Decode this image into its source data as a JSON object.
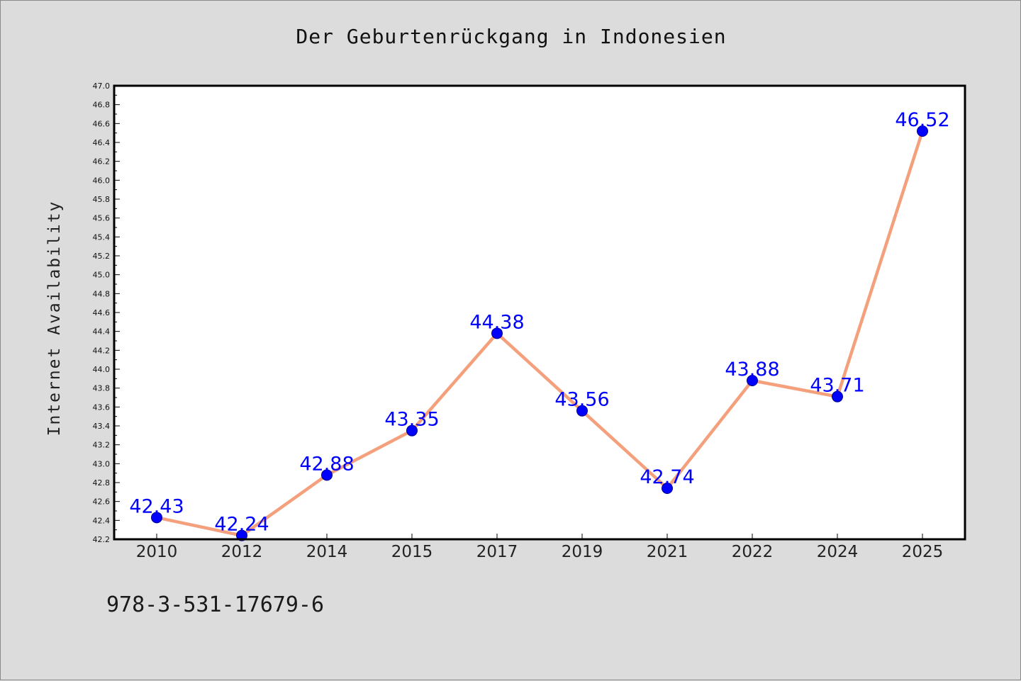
{
  "colors": {
    "background": "#dcdcdc",
    "plot_background": "#ffffff",
    "line": "#f4a07c",
    "marker": "#0000ff",
    "data_label": "#0000ff"
  },
  "isbn": "978-3-531-17679-6",
  "chart_data": {
    "type": "line",
    "title": "Der Geburtenrückgang in Indonesien",
    "xlabel": "",
    "ylabel": "Internet Availability",
    "categories": [
      "2010",
      "2012",
      "2014",
      "2015",
      "2017",
      "2019",
      "2021",
      "2022",
      "2024",
      "2025"
    ],
    "series": [
      {
        "values": [
          42.43,
          42.24,
          42.88,
          43.35,
          44.38,
          43.56,
          42.74,
          43.88,
          43.71,
          46.52
        ]
      }
    ],
    "data_labels": [
      "42.43",
      "42.24",
      "42.88",
      "43.35",
      "44.38",
      "43.56",
      "42.74",
      "43.88",
      "43.71",
      "46.52"
    ],
    "ylim": [
      42.2,
      47.0
    ],
    "yticks": [
      "42.2",
      "42.4",
      "42.6",
      "42.8",
      "43.0",
      "43.2",
      "43.4",
      "43.6",
      "43.8",
      "44.0",
      "44.2",
      "44.4",
      "44.6",
      "44.8",
      "45.0",
      "45.2",
      "45.4",
      "45.6",
      "45.8",
      "46.0",
      "46.2",
      "46.4",
      "46.6",
      "46.8",
      "47.0"
    ],
    "grid": false,
    "legend": "none"
  }
}
